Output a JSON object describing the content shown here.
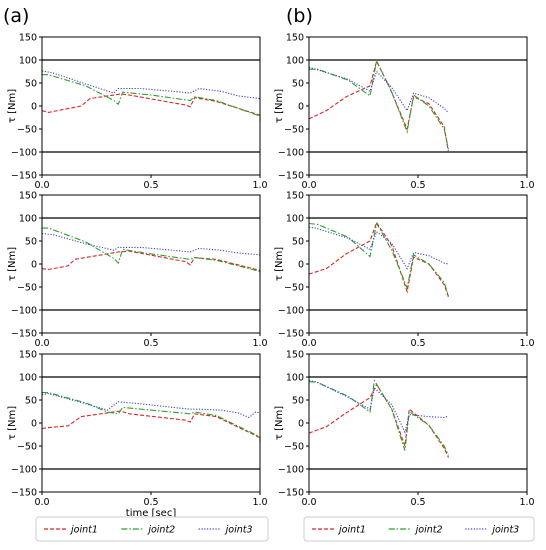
{
  "panel_labels": [
    "(a)",
    "(b)"
  ],
  "legend": {
    "entries": [
      "joint1",
      "joint2",
      "joint3"
    ]
  },
  "chart_data": {
    "type": "line",
    "ylabel": "τ [Nm]",
    "xlabel": "time [sec]",
    "xlim": [
      0.0,
      1.0
    ],
    "ylim": [
      -150,
      150
    ],
    "x_ticks": [
      "0.0",
      "0.5",
      "1.0"
    ],
    "y_ticks": [
      "150",
      "100",
      "50",
      "0",
      "−50",
      "−100",
      "−150"
    ],
    "reference_lines": [
      100,
      -100
    ],
    "series_styles": [
      {
        "name": "joint1",
        "color": "#d62728",
        "dash": "4,2"
      },
      {
        "name": "joint2",
        "color": "#2ca02c",
        "dash": "6,2,1.5,2"
      },
      {
        "name": "joint3",
        "color": "#4040cc",
        "dash": "1.2,1.6"
      }
    ],
    "panels": [
      {
        "column": "a",
        "row": 1,
        "series": [
          {
            "name": "joint1",
            "points": [
              [
                0,
                -10
              ],
              [
                0.03,
                -14
              ],
              [
                0.18,
                0
              ],
              [
                0.22,
                16
              ],
              [
                0.36,
                26
              ],
              [
                0.4,
                24
              ],
              [
                0.66,
                2
              ],
              [
                0.68,
                -2
              ],
              [
                0.7,
                18
              ],
              [
                0.8,
                10
              ],
              [
                1.0,
                -20
              ],
              [
                1.0,
                -35
              ]
            ]
          },
          {
            "name": "joint2",
            "points": [
              [
                0,
                68
              ],
              [
                0.03,
                68
              ],
              [
                0.2,
                44
              ],
              [
                0.33,
                12
              ],
              [
                0.35,
                4
              ],
              [
                0.37,
                30
              ],
              [
                0.5,
                24
              ],
              [
                0.68,
                12
              ],
              [
                0.7,
                20
              ],
              [
                0.8,
                12
              ],
              [
                1.0,
                -22
              ],
              [
                1.0,
                -28
              ]
            ]
          },
          {
            "name": "joint3",
            "points": [
              [
                0,
                76
              ],
              [
                0.05,
                72
              ],
              [
                0.2,
                48
              ],
              [
                0.33,
                28
              ],
              [
                0.35,
                38
              ],
              [
                0.45,
                38
              ],
              [
                0.6,
                32
              ],
              [
                0.68,
                28
              ],
              [
                0.72,
                38
              ],
              [
                0.82,
                32
              ],
              [
                0.9,
                22
              ],
              [
                1.0,
                16
              ]
            ]
          }
        ]
      },
      {
        "column": "b",
        "row": 1,
        "series": [
          {
            "name": "joint1",
            "points": [
              [
                0,
                -28
              ],
              [
                0.08,
                -10
              ],
              [
                0.17,
                20
              ],
              [
                0.28,
                44
              ],
              [
                0.31,
                97
              ],
              [
                0.37,
                40
              ],
              [
                0.45,
                -50
              ],
              [
                0.48,
                20
              ],
              [
                0.55,
                5
              ],
              [
                0.62,
                -45
              ],
              [
                0.64,
                -100
              ]
            ]
          },
          {
            "name": "joint2",
            "points": [
              [
                0,
                80
              ],
              [
                0.04,
                80
              ],
              [
                0.18,
                56
              ],
              [
                0.28,
                22
              ],
              [
                0.31,
                98
              ],
              [
                0.38,
                30
              ],
              [
                0.45,
                -56
              ],
              [
                0.48,
                24
              ],
              [
                0.55,
                0
              ],
              [
                0.62,
                -50
              ],
              [
                0.64,
                -95
              ]
            ]
          },
          {
            "name": "joint3",
            "points": [
              [
                0,
                84
              ],
              [
                0.03,
                80
              ],
              [
                0.18,
                58
              ],
              [
                0.28,
                32
              ],
              [
                0.31,
                75
              ],
              [
                0.38,
                40
              ],
              [
                0.45,
                -10
              ],
              [
                0.48,
                28
              ],
              [
                0.55,
                18
              ],
              [
                0.62,
                -5
              ],
              [
                0.64,
                -15
              ]
            ]
          }
        ]
      },
      {
        "column": "a",
        "row": 2,
        "series": [
          {
            "name": "joint1",
            "points": [
              [
                0,
                -10
              ],
              [
                0.03,
                -12
              ],
              [
                0.12,
                -4
              ],
              [
                0.15,
                10
              ],
              [
                0.35,
                26
              ],
              [
                0.4,
                28
              ],
              [
                0.66,
                5
              ],
              [
                0.68,
                -2
              ],
              [
                0.7,
                14
              ],
              [
                0.8,
                10
              ],
              [
                1.0,
                -14
              ],
              [
                1.0,
                -26
              ]
            ]
          },
          {
            "name": "joint2",
            "points": [
              [
                0,
                78
              ],
              [
                0.03,
                78
              ],
              [
                0.2,
                48
              ],
              [
                0.33,
                12
              ],
              [
                0.35,
                2
              ],
              [
                0.37,
                32
              ],
              [
                0.5,
                22
              ],
              [
                0.68,
                10
              ],
              [
                0.7,
                14
              ],
              [
                0.8,
                8
              ],
              [
                1.0,
                -16
              ],
              [
                1.0,
                -22
              ]
            ]
          },
          {
            "name": "joint3",
            "points": [
              [
                0,
                66
              ],
              [
                0.05,
                64
              ],
              [
                0.2,
                44
              ],
              [
                0.33,
                30
              ],
              [
                0.35,
                36
              ],
              [
                0.45,
                36
              ],
              [
                0.6,
                30
              ],
              [
                0.68,
                26
              ],
              [
                0.72,
                34
              ],
              [
                0.82,
                30
              ],
              [
                0.9,
                24
              ],
              [
                1.0,
                20
              ]
            ]
          }
        ]
      },
      {
        "column": "b",
        "row": 2,
        "series": [
          {
            "name": "joint1",
            "points": [
              [
                0,
                -22
              ],
              [
                0.08,
                -10
              ],
              [
                0.17,
                22
              ],
              [
                0.28,
                50
              ],
              [
                0.31,
                90
              ],
              [
                0.38,
                40
              ],
              [
                0.45,
                -60
              ],
              [
                0.48,
                15
              ],
              [
                0.55,
                0
              ],
              [
                0.62,
                -45
              ],
              [
                0.64,
                -72
              ]
            ]
          },
          {
            "name": "joint2",
            "points": [
              [
                0,
                88
              ],
              [
                0.04,
                86
              ],
              [
                0.18,
                58
              ],
              [
                0.28,
                16
              ],
              [
                0.31,
                88
              ],
              [
                0.38,
                30
              ],
              [
                0.45,
                -52
              ],
              [
                0.48,
                20
              ],
              [
                0.55,
                0
              ],
              [
                0.62,
                -40
              ],
              [
                0.64,
                -70
              ]
            ]
          },
          {
            "name": "joint3",
            "points": [
              [
                0,
                80
              ],
              [
                0.03,
                78
              ],
              [
                0.18,
                56
              ],
              [
                0.28,
                32
              ],
              [
                0.31,
                70
              ],
              [
                0.38,
                45
              ],
              [
                0.45,
                -10
              ],
              [
                0.48,
                25
              ],
              [
                0.55,
                18
              ],
              [
                0.62,
                2
              ],
              [
                0.64,
                0
              ]
            ]
          }
        ]
      },
      {
        "column": "a",
        "row": 3,
        "series": [
          {
            "name": "joint1",
            "points": [
              [
                0,
                -12
              ],
              [
                0.03,
                -10
              ],
              [
                0.12,
                -6
              ],
              [
                0.18,
                14
              ],
              [
                0.3,
                22
              ],
              [
                0.36,
                26
              ],
              [
                0.4,
                20
              ],
              [
                0.66,
                6
              ],
              [
                0.68,
                2
              ],
              [
                0.7,
                20
              ],
              [
                0.8,
                14
              ],
              [
                1.0,
                -32
              ],
              [
                1.0,
                -44
              ]
            ]
          },
          {
            "name": "joint2",
            "points": [
              [
                0,
                66
              ],
              [
                0.03,
                66
              ],
              [
                0.2,
                44
              ],
              [
                0.3,
                24
              ],
              [
                0.35,
                20
              ],
              [
                0.37,
                34
              ],
              [
                0.5,
                28
              ],
              [
                0.68,
                20
              ],
              [
                0.7,
                24
              ],
              [
                0.8,
                16
              ],
              [
                1.0,
                -30
              ],
              [
                1.0,
                -38
              ]
            ]
          },
          {
            "name": "joint3",
            "points": [
              [
                0,
                62
              ],
              [
                0.03,
                64
              ],
              [
                0.2,
                42
              ],
              [
                0.3,
                28
              ],
              [
                0.35,
                46
              ],
              [
                0.45,
                42
              ],
              [
                0.6,
                34
              ],
              [
                0.68,
                30
              ],
              [
                0.72,
                30
              ],
              [
                0.82,
                28
              ],
              [
                0.9,
                22
              ],
              [
                0.95,
                12
              ],
              [
                0.98,
                24
              ],
              [
                1.0,
                22
              ]
            ]
          }
        ]
      },
      {
        "column": "b",
        "row": 3,
        "series": [
          {
            "name": "joint1",
            "points": [
              [
                0,
                -22
              ],
              [
                0.08,
                -8
              ],
              [
                0.17,
                22
              ],
              [
                0.28,
                55
              ],
              [
                0.31,
                84
              ],
              [
                0.38,
                30
              ],
              [
                0.44,
                -50
              ],
              [
                0.46,
                30
              ],
              [
                0.55,
                -5
              ],
              [
                0.62,
                -55
              ],
              [
                0.64,
                -75
              ]
            ]
          },
          {
            "name": "joint2",
            "points": [
              [
                0,
                90
              ],
              [
                0.04,
                88
              ],
              [
                0.18,
                58
              ],
              [
                0.28,
                24
              ],
              [
                0.3,
                92
              ],
              [
                0.38,
                30
              ],
              [
                0.44,
                -60
              ],
              [
                0.46,
                25
              ],
              [
                0.55,
                -5
              ],
              [
                0.62,
                -50
              ],
              [
                0.64,
                -70
              ]
            ]
          },
          {
            "name": "joint3",
            "points": [
              [
                0,
                92
              ],
              [
                0.03,
                90
              ],
              [
                0.18,
                56
              ],
              [
                0.28,
                30
              ],
              [
                0.3,
                76
              ],
              [
                0.38,
                40
              ],
              [
                0.44,
                -20
              ],
              [
                0.46,
                18
              ],
              [
                0.55,
                14
              ],
              [
                0.62,
                12
              ],
              [
                0.64,
                15
              ]
            ]
          }
        ]
      }
    ]
  }
}
